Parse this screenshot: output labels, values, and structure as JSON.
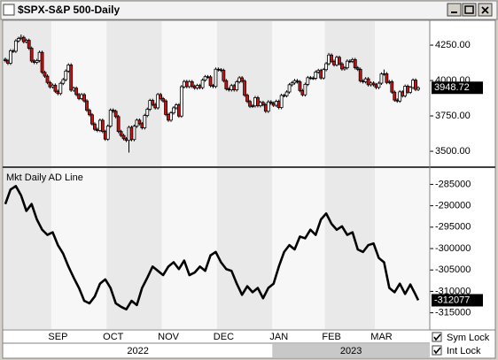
{
  "chart_data": [
    {
      "type": "candlestick",
      "title": "$SPX-S&P 500-Daily",
      "up_color": "#ffffff",
      "down_color": "#d01010",
      "shade_months": true,
      "categories": [
        null,
        null,
        null,
        null,
        null,
        null,
        null,
        null,
        null,
        null,
        null,
        null,
        null,
        null,
        null,
        null,
        null,
        null,
        "SEP",
        null,
        null,
        null,
        null,
        null,
        null,
        null,
        null,
        null,
        null,
        null,
        null,
        null,
        null,
        null,
        null,
        null,
        null,
        null,
        null,
        "OCT",
        null,
        null,
        null,
        null,
        null,
        null,
        null,
        null,
        null,
        null,
        null,
        null,
        null,
        null,
        null,
        null,
        null,
        null,
        null,
        null,
        "NOV",
        null,
        null,
        null,
        null,
        null,
        null,
        null,
        null,
        null,
        null,
        null,
        null,
        null,
        null,
        null,
        null,
        null,
        null,
        null,
        null,
        "DEC",
        null,
        null,
        null,
        null,
        null,
        null,
        null,
        null,
        null,
        null,
        null,
        null,
        null,
        null,
        null,
        null,
        null,
        null,
        null,
        null,
        "JAN",
        null,
        null,
        null,
        null,
        null,
        null,
        null,
        null,
        null,
        null,
        null,
        null,
        null,
        null,
        null,
        null,
        null,
        null,
        null,
        "FEB",
        null,
        null,
        null,
        null,
        null,
        null,
        null,
        null,
        null,
        null,
        null,
        null,
        null,
        null,
        null,
        null,
        null,
        null,
        "MAR",
        null,
        null,
        null,
        null,
        null,
        null,
        null,
        null,
        null,
        null,
        null,
        null,
        null,
        null,
        null,
        null
      ],
      "years": [
        "2022",
        null,
        null,
        null,
        null,
        null,
        null,
        null,
        null,
        null,
        null,
        null,
        null,
        null,
        null,
        null,
        null,
        null,
        null,
        null,
        null,
        null,
        null,
        null,
        null,
        null,
        null,
        null,
        null,
        null,
        null,
        null,
        null,
        null,
        null,
        null,
        null,
        null,
        null,
        null,
        null,
        null,
        null,
        null,
        null,
        null,
        null,
        null,
        null,
        null,
        null,
        null,
        null,
        null,
        null,
        null,
        null,
        null,
        null,
        null,
        null,
        null,
        null,
        null,
        null,
        null,
        null,
        null,
        null,
        null,
        null,
        null,
        null,
        null,
        null,
        null,
        null,
        null,
        null,
        null,
        null,
        null,
        null,
        null,
        null,
        null,
        null,
        null,
        null,
        null,
        null,
        null,
        null,
        null,
        null,
        null,
        null,
        null,
        null,
        null,
        null,
        null,
        "2023",
        null,
        null,
        null,
        null,
        null,
        null,
        null,
        null,
        null,
        null,
        null,
        null,
        null,
        null,
        null,
        null,
        null,
        null,
        null,
        null,
        null,
        null,
        null,
        null,
        null,
        null,
        null,
        null,
        null,
        null,
        null,
        null,
        null,
        null,
        null,
        null,
        null,
        null,
        null,
        null,
        null,
        null,
        null,
        null,
        null,
        null,
        null,
        null,
        null,
        null
      ],
      "open": [
        4150,
        4140,
        4122,
        4210,
        4207,
        4280,
        4297,
        4305,
        4274,
        4284,
        4228,
        4138,
        4128,
        4141,
        4199,
        4058,
        4031,
        3986,
        3955,
        3967,
        3924,
        3908,
        3980,
        4006,
        4067,
        4110,
        3932,
        3946,
        3901,
        3873,
        3900,
        3856,
        3790,
        3758,
        3693,
        3655,
        3647,
        3719,
        3640,
        3586,
        3678,
        3791,
        3783,
        3745,
        3640,
        3612,
        3589,
        3577,
        3669,
        3583,
        3677,
        3720,
        3695,
        3666,
        3753,
        3797,
        3859,
        3830,
        3807,
        3901,
        3872,
        3856,
        3760,
        3720,
        3771,
        3807,
        3828,
        3749,
        3956,
        3993,
        3957,
        3992,
        3959,
        3947,
        3965,
        3950,
        4003,
        4027,
        4026,
        3964,
        3958,
        4080,
        4076,
        4072,
        3999,
        3941,
        3934,
        3964,
        3934,
        3991,
        4019,
        3996,
        3896,
        3852,
        3818,
        3821,
        3879,
        3822,
        3845,
        3829,
        3783,
        3849,
        3840,
        3825,
        3853,
        3809,
        3895,
        3893,
        3919,
        3970,
        3983,
        3999,
        3991,
        3929,
        3899,
        3973,
        4020,
        4017,
        4016,
        4060,
        4071,
        4018,
        4077,
        4119,
        4180,
        4136,
        4111,
        4164,
        4118,
        4082,
        4090,
        4137,
        4136,
        4148,
        4090,
        4079,
        3997,
        3991,
        4012,
        3970,
        3982,
        3970,
        3951,
        3981,
        4046,
        4048,
        3986,
        3992,
        3918,
        3862,
        3855,
        3920,
        3892,
        3960,
        3917,
        3951,
        4003,
        3937
      ],
      "high": [
        4162,
        4152,
        4222,
        4222,
        4292,
        4309,
        4325,
        4317,
        4296,
        4296,
        4240,
        4150,
        4153,
        4211,
        4211,
        4070,
        4043,
        3998,
        3979,
        3979,
        3936,
        3992,
        4018,
        4079,
        4122,
        4122,
        3958,
        3958,
        3913,
        3912,
        3912,
        3868,
        3802,
        3770,
        3705,
        3667,
        3731,
        3731,
        3652,
        3690,
        3803,
        3803,
        3795,
        3757,
        3652,
        3624,
        3601,
        3681,
        3681,
        3689,
        3732,
        3732,
        3707,
        3765,
        3809,
        3871,
        3871,
        3842,
        3913,
        3913,
        3884,
        3868,
        3772,
        3783,
        3819,
        3840,
        3840,
        3968,
        4005,
        4005,
        4004,
        4004,
        3971,
        3977,
        3977,
        4015,
        4039,
        4039,
        4038,
        3976,
        4092,
        4092,
        4088,
        4084,
        4011,
        3953,
        3976,
        3976,
        4003,
        4031,
        4031,
        4008,
        3908,
        3864,
        3833,
        3891,
        3891,
        3857,
        3857,
        3841,
        3861,
        3861,
        3852,
        3865,
        3865,
        3907,
        3907,
        3931,
        3982,
        3995,
        4011,
        4011,
        4003,
        3941,
        3985,
        4032,
        4032,
        4029,
        4072,
        4083,
        4083,
        4089,
        4131,
        4195,
        4192,
        4148,
        4176,
        4176,
        4130,
        4102,
        4149,
        4149,
        4160,
        4160,
        4102,
        4091,
        4009,
        4024,
        4024,
        3994,
        3994,
        3982,
        3993,
        4058,
        4078,
        4060,
        4004,
        4004,
        3930,
        3874,
        3932,
        3932,
        3972,
        3972,
        3963,
        4015,
        4015,
        3960
      ],
      "low": [
        4128,
        4110,
        4110,
        4195,
        4195,
        4268,
        4285,
        4262,
        4262,
        4216,
        4126,
        4116,
        4116,
        4129,
        4046,
        4019,
        3974,
        3943,
        3943,
        3912,
        3896,
        3896,
        3968,
        3994,
        4055,
        3920,
        3920,
        3889,
        3861,
        3861,
        3844,
        3778,
        3746,
        3681,
        3643,
        3635,
        3635,
        3628,
        3574,
        3574,
        3666,
        3771,
        3733,
        3628,
        3600,
        3577,
        3565,
        3491,
        3571,
        3571,
        3665,
        3683,
        3654,
        3654,
        3741,
        3785,
        3818,
        3795,
        3795,
        3860,
        3844,
        3748,
        3708,
        3708,
        3759,
        3795,
        3737,
        3737,
        3944,
        3945,
        3945,
        3947,
        3935,
        3935,
        3938,
        3938,
        3991,
        4014,
        3952,
        3946,
        3946,
        4064,
        4060,
        3987,
        3929,
        3922,
        3922,
        3922,
        3922,
        3979,
        3984,
        3884,
        3840,
        3806,
        3806,
        3809,
        3810,
        3810,
        3817,
        3771,
        3771,
        3828,
        3813,
        3813,
        3797,
        3797,
        3881,
        3881,
        3907,
        3958,
        3971,
        3979,
        3917,
        3887,
        3887,
        3961,
        4005,
        4004,
        4004,
        4048,
        4006,
        4006,
        4065,
        4107,
        4124,
        4099,
        4099,
        4106,
        4070,
        4070,
        4078,
        4124,
        4124,
        4078,
        4067,
        3985,
        3979,
        3979,
        3958,
        3958,
        3958,
        3939,
        3939,
        3969,
        4034,
        3974,
        3974,
        3906,
        3850,
        3843,
        3843,
        3880,
        3880,
        3905,
        3905,
        3939,
        3925,
        3925
      ],
      "close": [
        4140,
        4122,
        4210,
        4207,
        4280,
        4297,
        4305,
        4274,
        4284,
        4228,
        4138,
        4128,
        4141,
        4199,
        4058,
        4031,
        3986,
        3955,
        3967,
        3924,
        3908,
        3980,
        4006,
        4067,
        4110,
        3932,
        3946,
        3901,
        3873,
        3900,
        3856,
        3790,
        3758,
        3693,
        3655,
        3647,
        3719,
        3640,
        3586,
        3678,
        3791,
        3783,
        3745,
        3640,
        3612,
        3589,
        3577,
        3669,
        3583,
        3677,
        3720,
        3695,
        3666,
        3753,
        3797,
        3859,
        3830,
        3807,
        3901,
        3872,
        3856,
        3760,
        3720,
        3771,
        3807,
        3828,
        3749,
        3956,
        3993,
        3957,
        3992,
        3959,
        3947,
        3965,
        3950,
        4003,
        4027,
        4026,
        3964,
        3958,
        4080,
        4076,
        4072,
        3999,
        3941,
        3934,
        3964,
        3934,
        3991,
        4019,
        3996,
        3896,
        3852,
        3818,
        3821,
        3879,
        3822,
        3845,
        3829,
        3783,
        3849,
        3840,
        3825,
        3853,
        3809,
        3895,
        3893,
        3919,
        3970,
        3983,
        3999,
        3991,
        3929,
        3899,
        3973,
        4020,
        4017,
        4016,
        4060,
        4071,
        4018,
        4077,
        4119,
        4180,
        4136,
        4111,
        4164,
        4118,
        4082,
        4090,
        4137,
        4136,
        4148,
        4090,
        4079,
        3997,
        3991,
        4012,
        3970,
        3982,
        3970,
        3951,
        3981,
        4046,
        4048,
        3986,
        3992,
        3918,
        3862,
        3855,
        3920,
        3892,
        3960,
        3917,
        3951,
        4003,
        3937,
        3948.72
      ],
      "ylim": [
        3394,
        4419
      ],
      "yticks": [
        {
          "value": 3500,
          "label": "3500.00"
        },
        {
          "value": 3750,
          "label": "3750.00"
        },
        {
          "value": 4000,
          "label": "4000.00"
        },
        {
          "value": 4250,
          "label": "4250.00"
        }
      ]
    },
    {
      "type": "line",
      "title": "Mkt Daily AD Line",
      "color": "#000000",
      "values": [
        -289600,
        -287900,
        -286200,
        -285800,
        -285400,
        -286500,
        -287600,
        -289400,
        -291200,
        -290400,
        -289600,
        -291400,
        -293200,
        -294400,
        -295600,
        -296200,
        -296800,
        -296500,
        -296200,
        -297700,
        -299200,
        -300200,
        -301200,
        -302700,
        -304200,
        -305500,
        -306800,
        -308000,
        -309200,
        -310700,
        -312200,
        -312500,
        -312800,
        -312000,
        -311200,
        -309700,
        -308200,
        -307700,
        -307200,
        -308200,
        -309200,
        -311000,
        -312800,
        -313200,
        -313600,
        -313900,
        -314200,
        -313200,
        -312200,
        -312700,
        -313200,
        -311200,
        -309200,
        -308000,
        -306800,
        -305500,
        -304200,
        -304700,
        -305200,
        -305700,
        -306200,
        -305200,
        -304200,
        -303700,
        -303200,
        -304000,
        -304800,
        -303800,
        -302800,
        -304500,
        -306200,
        -305900,
        -305600,
        -304900,
        -304200,
        -304700,
        -305200,
        -303400,
        -301600,
        -301200,
        -300800,
        -302000,
        -303200,
        -304000,
        -304800,
        -305000,
        -305200,
        -306700,
        -308200,
        -309500,
        -310800,
        -309800,
        -308800,
        -309500,
        -310200,
        -309700,
        -309200,
        -310400,
        -311600,
        -310400,
        -309200,
        -308700,
        -308200,
        -306200,
        -304200,
        -302500,
        -300800,
        -300000,
        -299200,
        -299700,
        -300200,
        -298700,
        -297200,
        -297400,
        -297600,
        -296600,
        -295600,
        -296200,
        -296800,
        -295000,
        -293200,
        -292500,
        -291800,
        -293000,
        -294200,
        -294900,
        -295600,
        -295200,
        -294800,
        -295800,
        -296800,
        -296500,
        -296200,
        -298200,
        -300200,
        -300500,
        -300800,
        -300000,
        -299200,
        -299000,
        -298800,
        -300500,
        -302200,
        -302700,
        -303200,
        -306200,
        -309200,
        -309700,
        -310200,
        -309200,
        -308200,
        -309400,
        -310600,
        -309500,
        -308400,
        -309600,
        -310800,
        -312077
      ],
      "ylim": [
        -318800,
        -281400
      ],
      "yticks": [
        -315000,
        -310000,
        -305000,
        -300000,
        -295000,
        -290000,
        -285000
      ]
    }
  ],
  "controls": {
    "sym_lock": "Sym Lock",
    "int_lock": "Int Lock"
  }
}
